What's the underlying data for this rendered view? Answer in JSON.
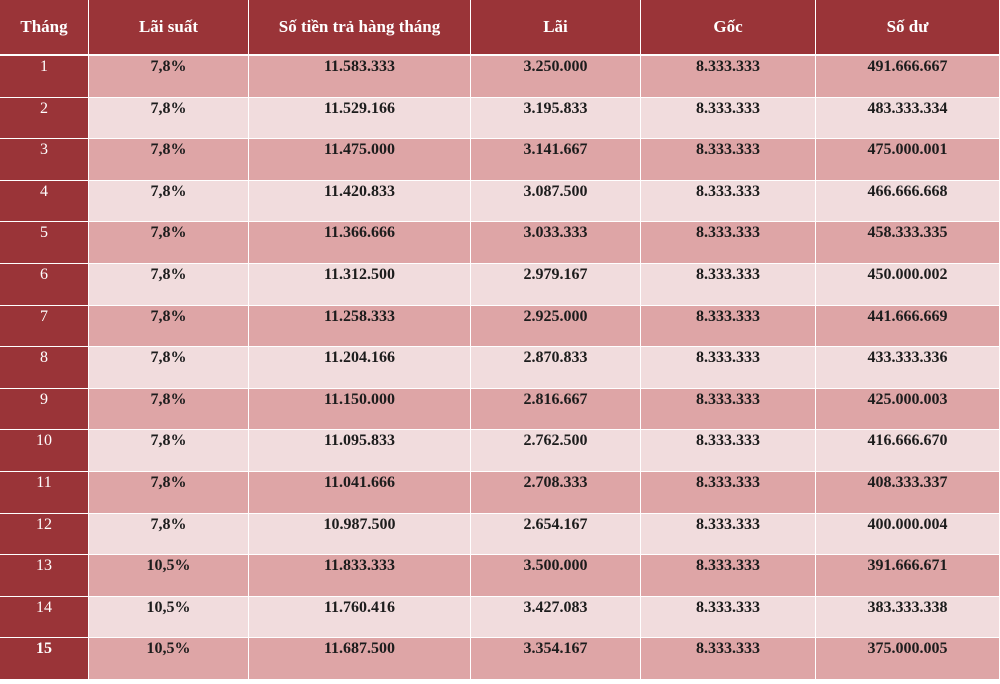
{
  "table": {
    "headers": [
      "Tháng",
      "Lãi suất",
      "Số tiền trả hàng tháng",
      "Lãi",
      "Gốc",
      "Số dư"
    ],
    "rows": [
      [
        "1",
        "7,8%",
        "11.583.333",
        "3.250.000",
        "8.333.333",
        "491.666.667"
      ],
      [
        "2",
        "7,8%",
        "11.529.166",
        "3.195.833",
        "8.333.333",
        "483.333.334"
      ],
      [
        "3",
        "7,8%",
        "11.475.000",
        "3.141.667",
        "8.333.333",
        "475.000.001"
      ],
      [
        "4",
        "7,8%",
        "11.420.833",
        "3.087.500",
        "8.333.333",
        "466.666.668"
      ],
      [
        "5",
        "7,8%",
        "11.366.666",
        "3.033.333",
        "8.333.333",
        "458.333.335"
      ],
      [
        "6",
        "7,8%",
        "11.312.500",
        "2.979.167",
        "8.333.333",
        "450.000.002"
      ],
      [
        "7",
        "7,8%",
        "11.258.333",
        "2.925.000",
        "8.333.333",
        "441.666.669"
      ],
      [
        "8",
        "7,8%",
        "11.204.166",
        "2.870.833",
        "8.333.333",
        "433.333.336"
      ],
      [
        "9",
        "7,8%",
        "11.150.000",
        "2.816.667",
        "8.333.333",
        "425.000.003"
      ],
      [
        "10",
        "7,8%",
        "11.095.833",
        "2.762.500",
        "8.333.333",
        "416.666.670"
      ],
      [
        "11",
        "7,8%",
        "11.041.666",
        "2.708.333",
        "8.333.333",
        "408.333.337"
      ],
      [
        "12",
        "7,8%",
        "10.987.500",
        "2.654.167",
        "8.333.333",
        "400.000.004"
      ],
      [
        "13",
        "10,5%",
        "11.833.333",
        "3.500.000",
        "8.333.333",
        "391.666.671"
      ],
      [
        "14",
        "10,5%",
        "11.760.416",
        "3.427.083",
        "8.333.333",
        "383.333.338"
      ],
      [
        "15",
        "10,5%",
        "11.687.500",
        "3.354.167",
        "8.333.333",
        "375.000.005"
      ]
    ]
  },
  "colors": {
    "header_bg": "#9a3438",
    "row_dark": "#dea5a6",
    "row_light": "#f1dcdd"
  }
}
